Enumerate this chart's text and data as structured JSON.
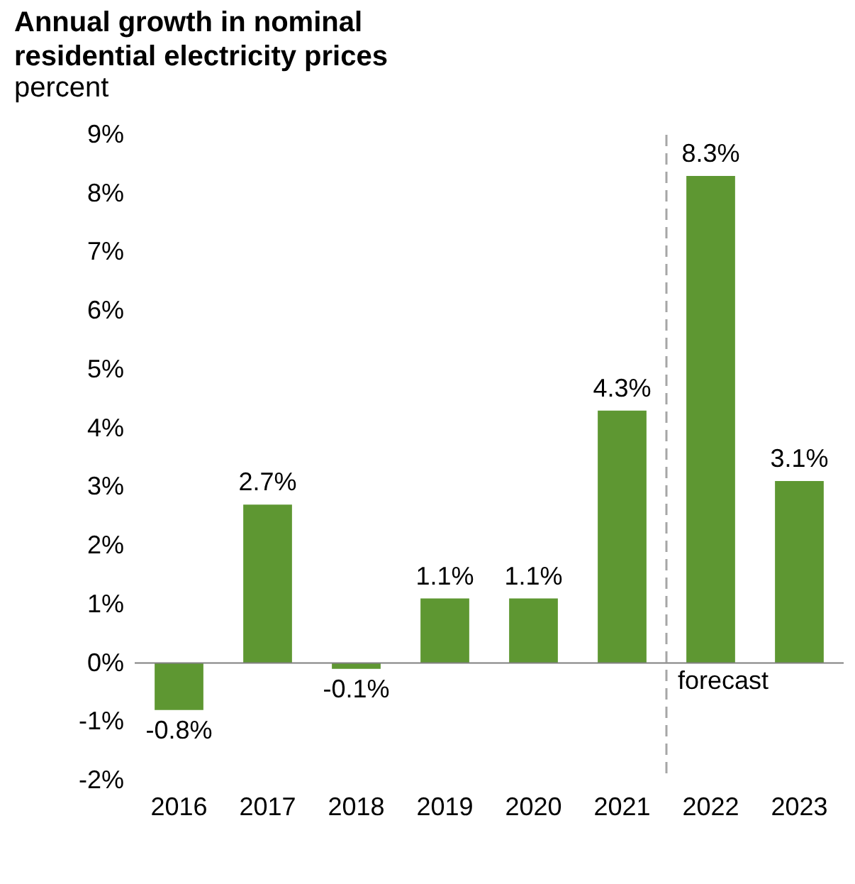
{
  "chart_data": {
    "type": "bar",
    "title": "Annual growth in nominal residential electricity prices",
    "subtitle": "percent",
    "categories": [
      "2016",
      "2017",
      "2018",
      "2019",
      "2020",
      "2021",
      "2022",
      "2023"
    ],
    "values": [
      -0.8,
      2.7,
      -0.1,
      1.1,
      1.1,
      4.3,
      8.3,
      3.1
    ],
    "value_labels": [
      "-0.8%",
      "2.7%",
      "-0.1%",
      "1.1%",
      "1.1%",
      "4.3%",
      "8.3%",
      "3.1%"
    ],
    "color": "#5e9732",
    "ylim": [
      -2,
      9
    ],
    "yticks": [
      {
        "value": -2,
        "label": "-2%"
      },
      {
        "value": -1,
        "label": "-1%"
      },
      {
        "value": 0,
        "label": "0%"
      },
      {
        "value": 1,
        "label": "1%"
      },
      {
        "value": 2,
        "label": "2%"
      },
      {
        "value": 3,
        "label": "3%"
      },
      {
        "value": 4,
        "label": "4%"
      },
      {
        "value": 5,
        "label": "5%"
      },
      {
        "value": 6,
        "label": "6%"
      },
      {
        "value": 7,
        "label": "7%"
      },
      {
        "value": 8,
        "label": "8%"
      },
      {
        "value": 9,
        "label": "9%"
      }
    ],
    "ref_lines": [
      {
        "axis": "x",
        "value": "2022",
        "label": "forecast",
        "color": "#a6a6a6",
        "line_style": "dashed"
      }
    ],
    "grid": false
  }
}
